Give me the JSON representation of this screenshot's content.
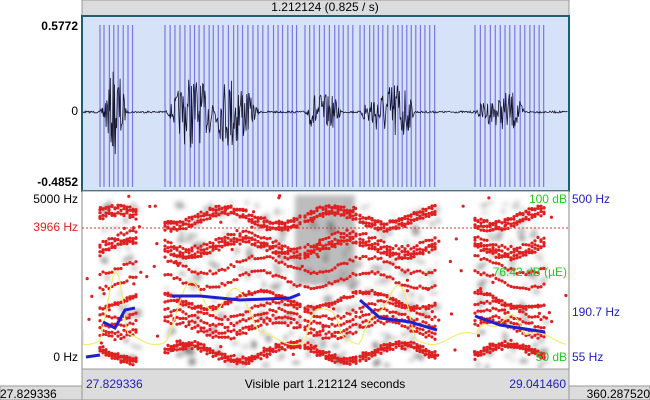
{
  "top_bar": {
    "selection": "1.212124 (0.825 / s)"
  },
  "waveform": {
    "max": "0.5772",
    "zero": "0",
    "min": "-0.4852"
  },
  "spectrogram": {
    "top": "5000 Hz",
    "cursor": "3966 Hz",
    "bottom": "0 Hz",
    "intensity_top": "100 dB",
    "intensity_cursor": "76.42 dB (µE)",
    "intensity_bottom": "50 dB",
    "pitch_top": "500 Hz",
    "pitch_cursor": "190.7 Hz",
    "pitch_bottom": "55 Hz"
  },
  "bottom_bar": {
    "window_start": "27.829336",
    "visible_start": "27.829336",
    "visible_label": "Visible part 1.212124 seconds",
    "visible_end": "29.041460",
    "window_end": "360.287520"
  }
}
